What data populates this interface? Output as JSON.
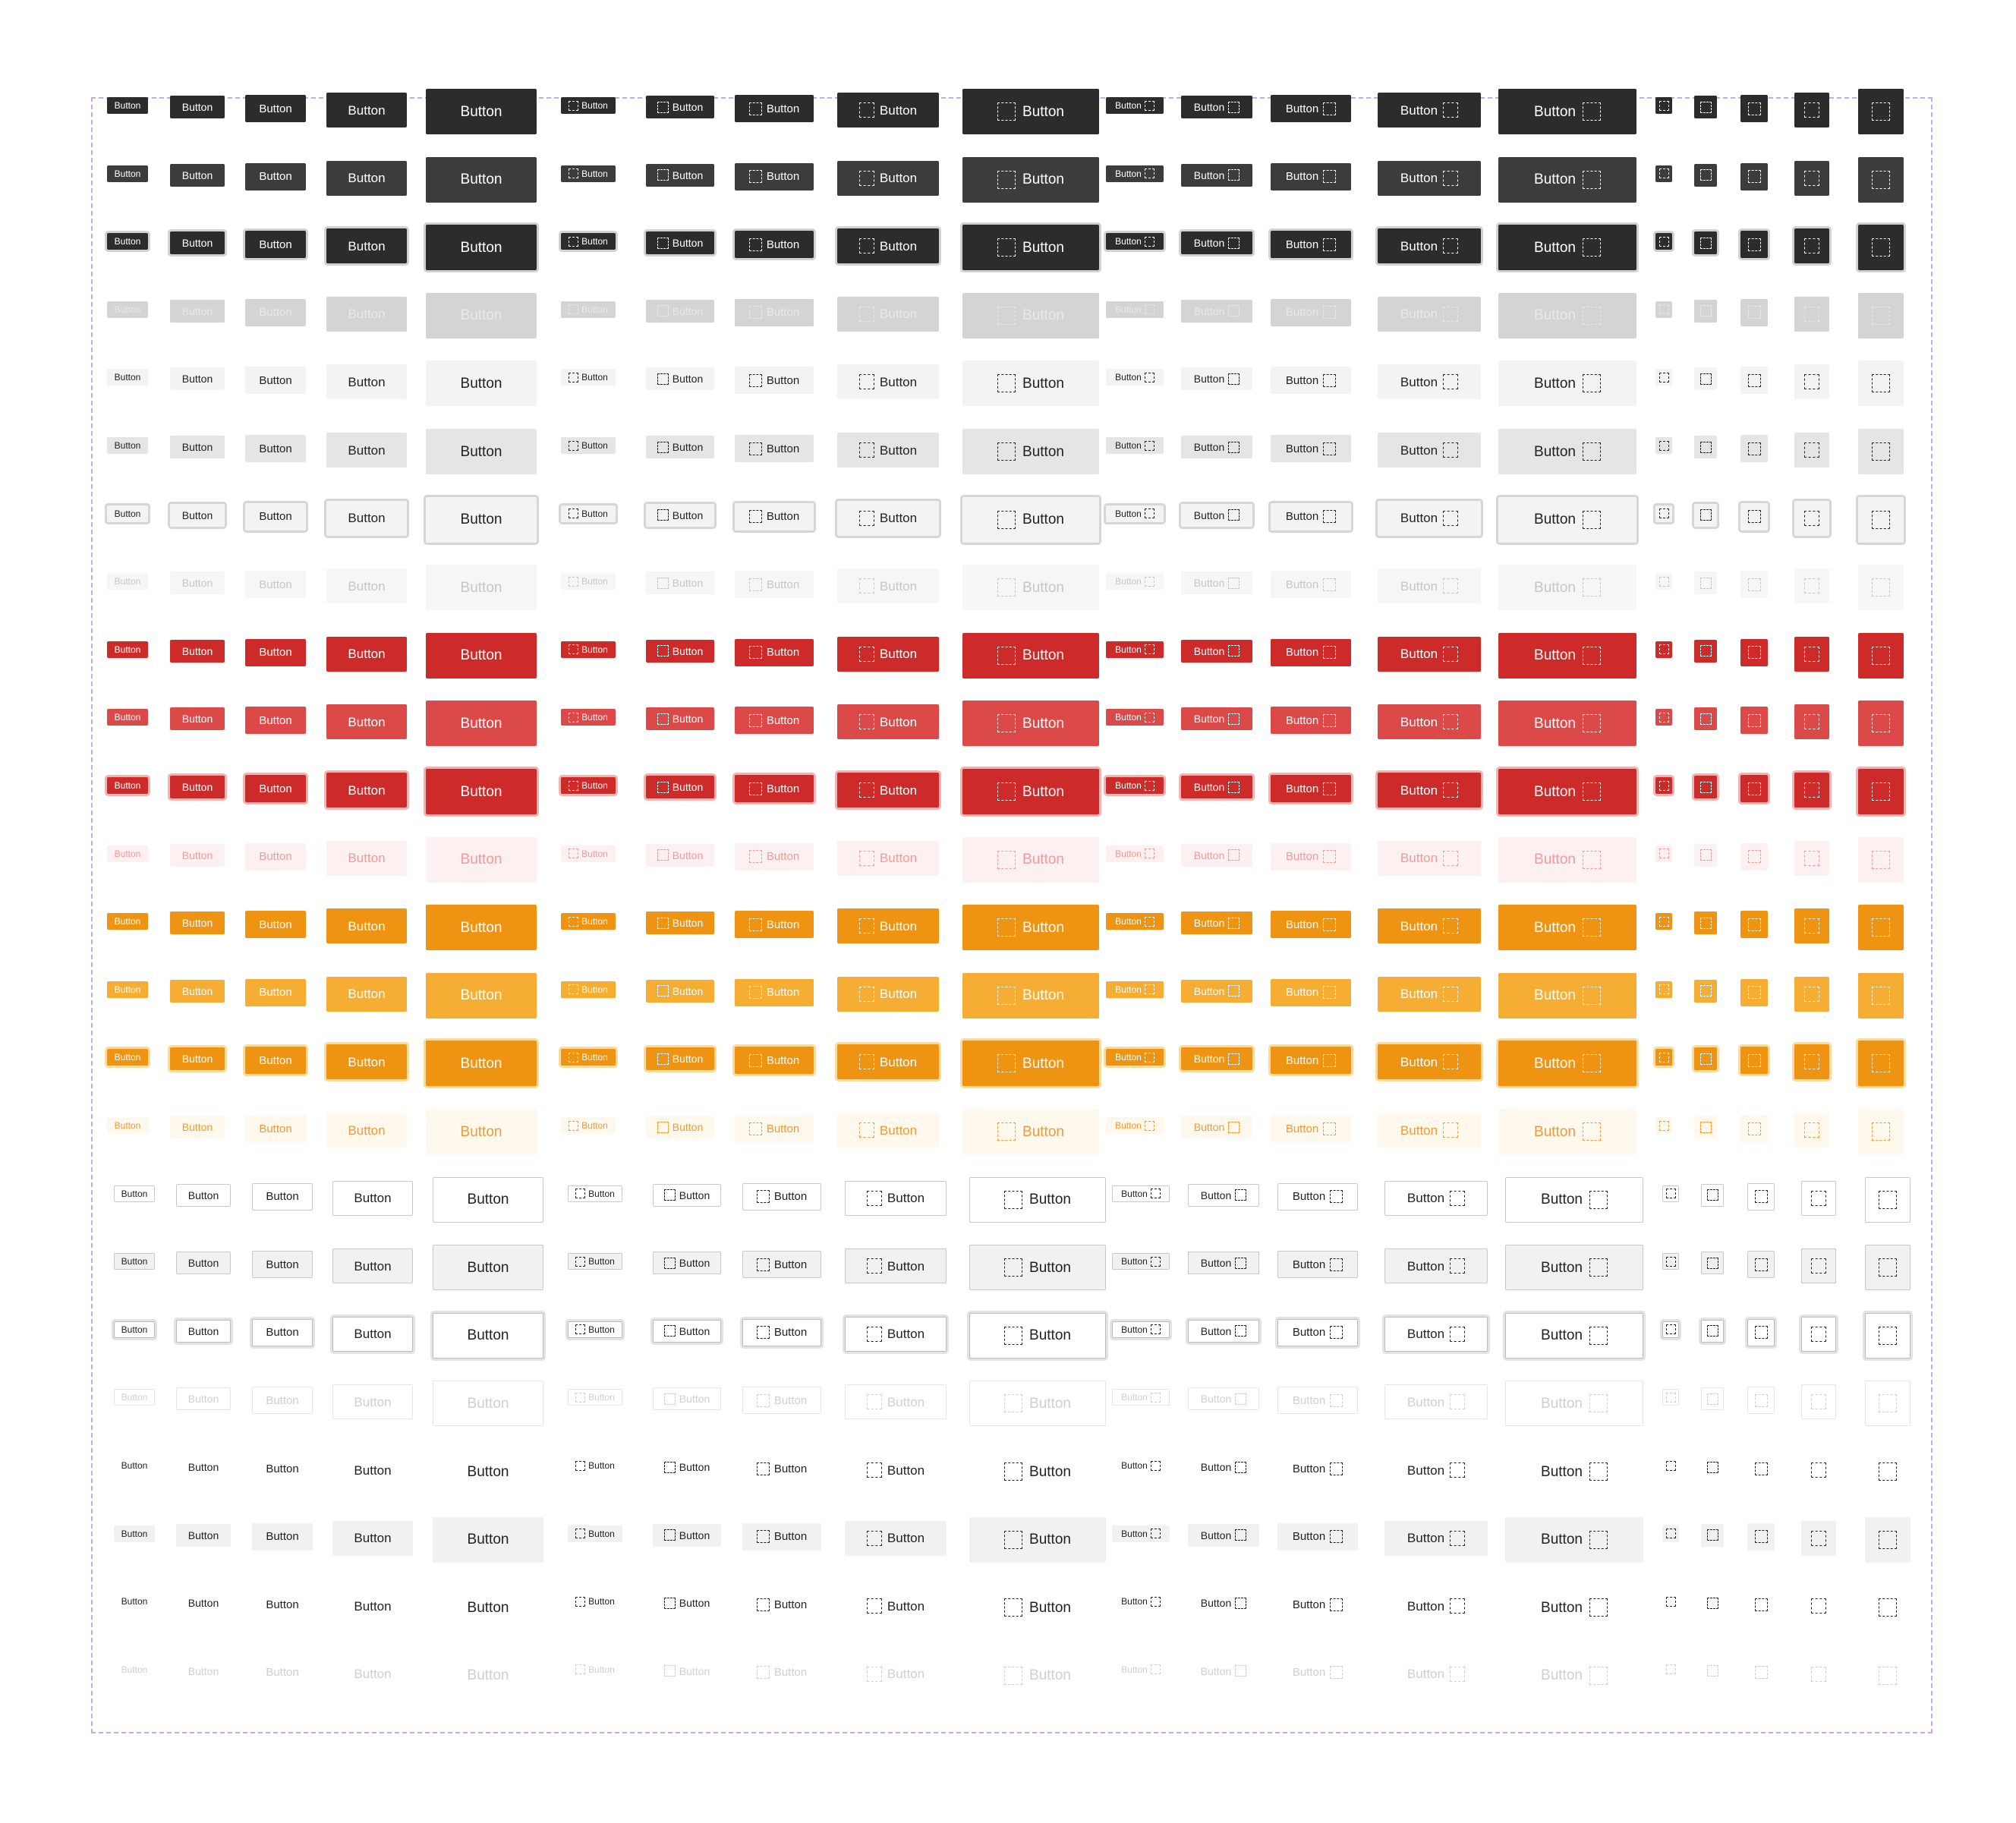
{
  "label": "Button",
  "icon": "dashed-square-icon",
  "sizes": [
    "xs",
    "sm",
    "md",
    "lg",
    "xl"
  ],
  "groups": [
    "label-only",
    "icon-left",
    "icon-right",
    "icon-only"
  ],
  "rows": [
    {
      "style": "dark",
      "state": "default"
    },
    {
      "style": "dark",
      "state": "hover"
    },
    {
      "style": "dark",
      "state": "focus"
    },
    {
      "style": "dark",
      "state": "disabled"
    },
    {
      "style": "light",
      "state": "default"
    },
    {
      "style": "light",
      "state": "hover"
    },
    {
      "style": "light",
      "state": "focus"
    },
    {
      "style": "light",
      "state": "disabled"
    },
    {
      "style": "red",
      "state": "default"
    },
    {
      "style": "red",
      "state": "hover"
    },
    {
      "style": "red",
      "state": "focus"
    },
    {
      "style": "red",
      "state": "disabled"
    },
    {
      "style": "orange",
      "state": "default"
    },
    {
      "style": "orange",
      "state": "hover"
    },
    {
      "style": "orange",
      "state": "focus"
    },
    {
      "style": "orange",
      "state": "disabled"
    },
    {
      "style": "outline",
      "state": "default"
    },
    {
      "style": "outline",
      "state": "hover"
    },
    {
      "style": "outline",
      "state": "focus"
    },
    {
      "style": "outline",
      "state": "disabled"
    },
    {
      "style": "ghost",
      "state": "default"
    },
    {
      "style": "ghost",
      "state": "hover"
    },
    {
      "style": "ghost",
      "state": "focus"
    },
    {
      "style": "ghost",
      "state": "disabled"
    }
  ],
  "colors": {
    "frame_border": "#c9a6f2",
    "dark": "#2c2c2c",
    "red": "#cd2a2a",
    "orange": "#ee9412",
    "light": "#f3f3f3"
  }
}
